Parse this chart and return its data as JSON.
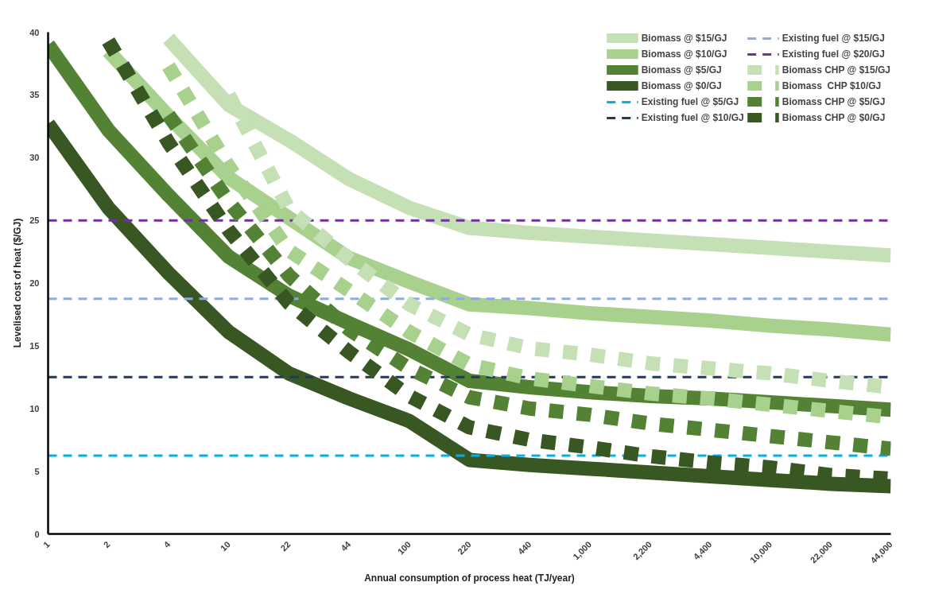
{
  "chart_data": {
    "type": "line",
    "xlabel": "Annual consumption of process heat (TJ/year)",
    "ylabel": "Levelised cost of heat ($/GJ)",
    "categories": [
      "1",
      "2",
      "4",
      "10",
      "22",
      "44",
      "100",
      "220",
      "440",
      "1,000",
      "2,200",
      "4,400",
      "10,000",
      "22,000",
      "44,000"
    ],
    "ylim": [
      0,
      40
    ],
    "yticks": [
      0,
      5,
      10,
      15,
      20,
      25,
      30,
      35,
      40
    ],
    "grid": false,
    "legend": "top right",
    "series": [
      {
        "name": "Biomass @ $15/GJ",
        "color": "#c5e0b4",
        "line_style": "solid",
        "values": [
          null,
          null,
          39.5,
          34.2,
          31.4,
          28.3,
          26.0,
          24.4,
          24.0,
          23.7,
          23.4,
          23.1,
          22.8,
          22.5,
          22.2
        ]
      },
      {
        "name": "Biomass @ $10/GJ",
        "color": "#a9d18e",
        "line_style": "solid",
        "values": [
          null,
          38.5,
          33.3,
          28.4,
          25.2,
          22.0,
          20.1,
          18.3,
          18.0,
          17.6,
          17.3,
          17.0,
          16.6,
          16.3,
          15.9
        ]
      },
      {
        "name": "Biomass @ $5/GJ",
        "color": "#548235",
        "line_style": "solid",
        "values": [
          39.0,
          32.2,
          27.0,
          22.1,
          19.0,
          16.8,
          14.7,
          12.2,
          11.7,
          11.3,
          11.0,
          10.8,
          10.5,
          10.2,
          9.9
        ]
      },
      {
        "name": "Biomass @ $0/GJ",
        "color": "#385723",
        "line_style": "solid",
        "values": [
          32.7,
          26.0,
          20.8,
          16.1,
          12.8,
          10.8,
          9.0,
          5.9,
          5.5,
          5.2,
          4.9,
          4.6,
          4.3,
          4.0,
          3.8
        ]
      },
      {
        "name": "Existing fuel @ $5/GJ",
        "color": "#00b0f0",
        "line_style": "dashed",
        "values": [
          6.25,
          6.25,
          6.25,
          6.25,
          6.25,
          6.25,
          6.25,
          6.25,
          6.25,
          6.25,
          6.25,
          6.25,
          6.25,
          6.25,
          6.25
        ]
      },
      {
        "name": "Existing fuel @ $10/GJ",
        "color": "#203864",
        "line_style": "dashed",
        "values": [
          12.5,
          12.5,
          12.5,
          12.5,
          12.5,
          12.5,
          12.5,
          12.5,
          12.5,
          12.5,
          12.5,
          12.5,
          12.5,
          12.5,
          12.5
        ]
      },
      {
        "name": "Existing fuel @ $15/GJ",
        "color": "#8faadc",
        "line_style": "dashed",
        "values": [
          18.75,
          18.75,
          18.75,
          18.75,
          18.75,
          18.75,
          18.75,
          18.75,
          18.75,
          18.75,
          18.75,
          18.75,
          18.75,
          18.75,
          18.75
        ]
      },
      {
        "name": "Existing fuel @ $20/GJ",
        "color": "#7030a0",
        "line_style": "dashed",
        "values": [
          25,
          25,
          25,
          25,
          25,
          25,
          25,
          25,
          25,
          25,
          25,
          25,
          25,
          25,
          25
        ]
      },
      {
        "name": "Biomass CHP @ $15/GJ",
        "color": "#c5e0b4",
        "line_style": "dotted",
        "values": [
          null,
          null,
          null,
          35.0,
          25.9,
          21.9,
          18.3,
          15.9,
          14.8,
          14.3,
          13.6,
          13.2,
          12.8,
          12.2,
          11.7
        ]
      },
      {
        "name": "Biomass  CHP $10/GJ",
        "color": "#a9d18e",
        "line_style": "dotted",
        "values": [
          null,
          null,
          37.3,
          29.3,
          22.6,
          19.4,
          16.1,
          13.5,
          12.4,
          11.8,
          11.2,
          10.8,
          10.3,
          9.8,
          9.3
        ]
      },
      {
        "name": "Biomass CHP @ $5/GJ",
        "color": "#548235",
        "line_style": "dotted",
        "values": [
          null,
          null,
          33.4,
          26.5,
          20.6,
          16.3,
          13.2,
          10.9,
          10.0,
          9.5,
          8.8,
          8.3,
          7.8,
          7.3,
          6.8
        ]
      },
      {
        "name": "Biomass CHP @ $0/GJ",
        "color": "#385723",
        "line_style": "dotted",
        "values": [
          null,
          39.3,
          31.2,
          24.2,
          18.4,
          14.5,
          11.0,
          8.5,
          7.5,
          6.9,
          6.2,
          5.7,
          5.3,
          4.7,
          4.4
        ]
      }
    ]
  }
}
